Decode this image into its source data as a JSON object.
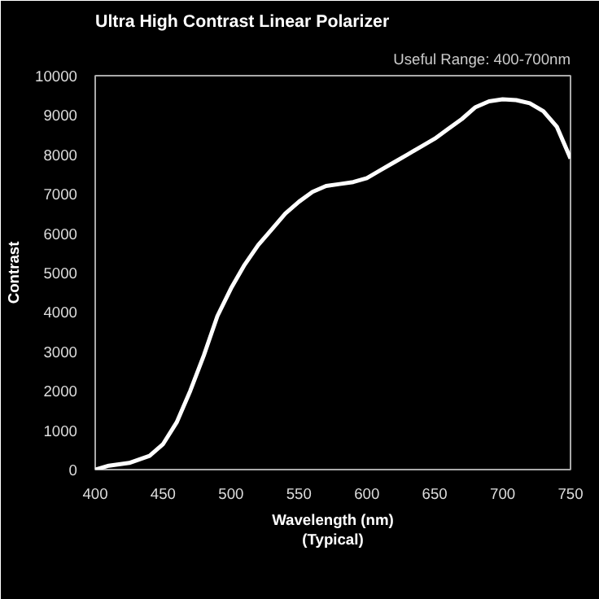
{
  "chart_data": {
    "type": "line",
    "title": "Ultra High Contrast Linear Polarizer",
    "annotations": [
      "Useful Range: 400-700nm"
    ],
    "xlabel": "Wavelength (nm)\n(Typical)",
    "ylabel": "Contrast",
    "x": [
      400,
      410,
      425,
      440,
      450,
      460,
      470,
      480,
      490,
      500,
      510,
      520,
      530,
      540,
      550,
      560,
      570,
      580,
      590,
      600,
      610,
      620,
      630,
      640,
      650,
      660,
      670,
      680,
      690,
      700,
      710,
      720,
      730,
      740,
      750
    ],
    "series": [
      {
        "color": "#ffffff",
        "values": [
          0,
          100,
          170,
          350,
          650,
          1200,
          2000,
          2900,
          3900,
          4600,
          5200,
          5700,
          6100,
          6500,
          6800,
          7050,
          7200,
          7250,
          7300,
          7400,
          7600,
          7800,
          8000,
          8200,
          8400,
          8650,
          8900,
          9200,
          9350,
          9400,
          9380,
          9300,
          9100,
          8700,
          7900
        ]
      }
    ],
    "xlim": [
      400,
      750
    ],
    "ylim": [
      0,
      10000
    ],
    "xticks": [
      400,
      450,
      500,
      550,
      600,
      650,
      700,
      750
    ],
    "yticks": [
      0,
      1000,
      2000,
      3000,
      4000,
      5000,
      6000,
      7000,
      8000,
      9000,
      10000
    ],
    "grid": false,
    "marker": "none",
    "line_style": "solid"
  }
}
